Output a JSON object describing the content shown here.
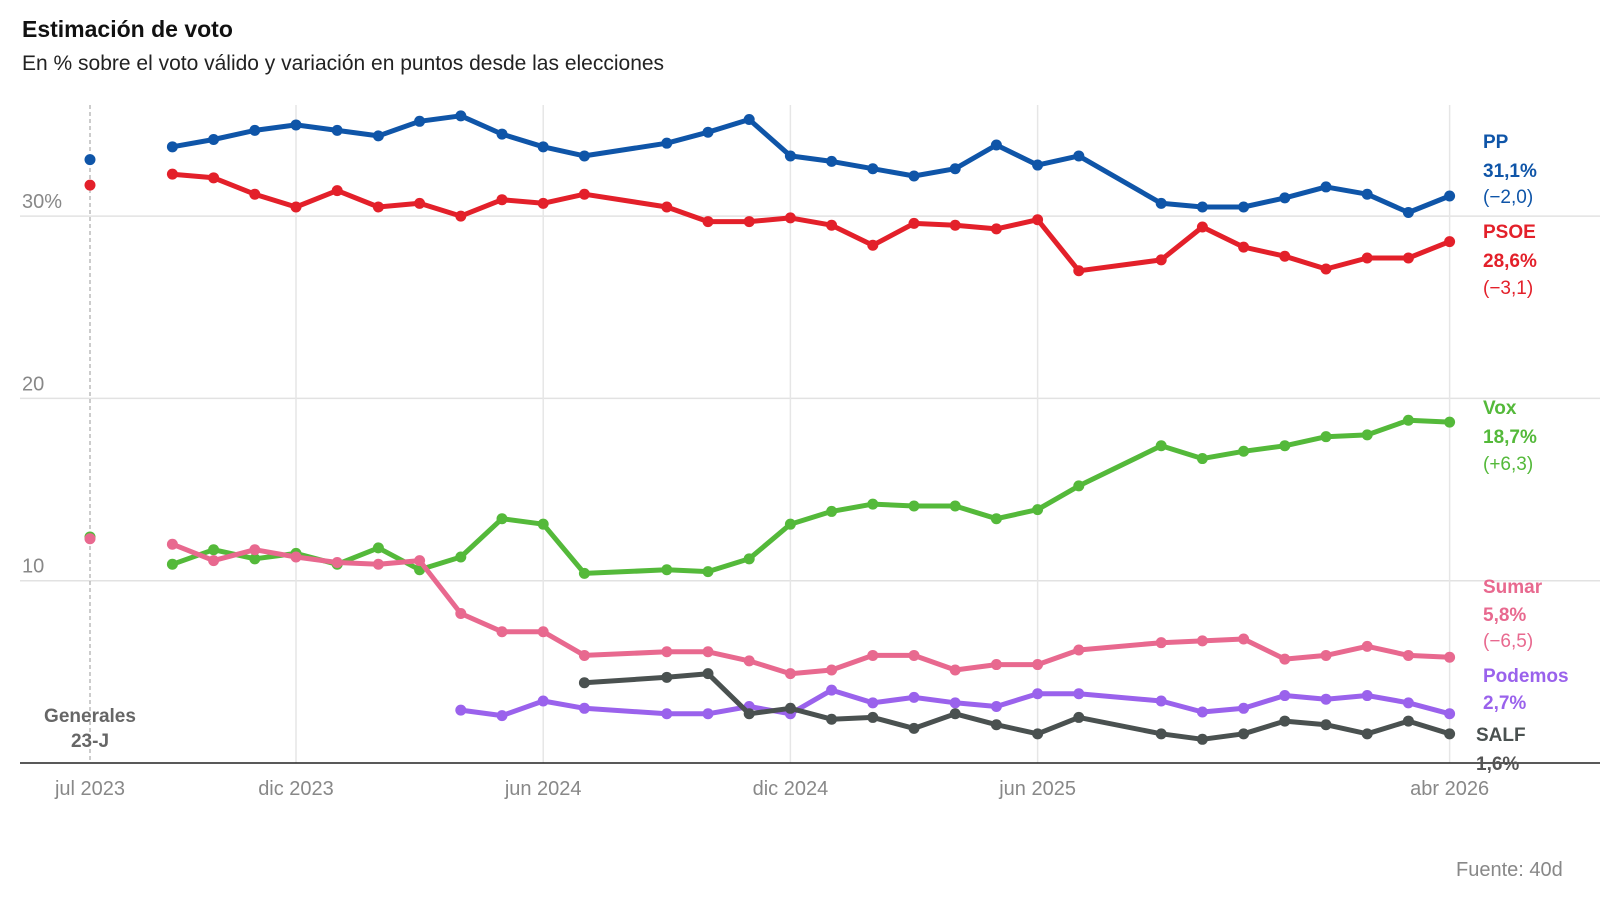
{
  "title": "Estimación de voto",
  "subtitle": "En % sobre el voto válido y variación en puntos desde las elecciones",
  "source": "Fuente: 40d",
  "chart_data": {
    "type": "line",
    "title": "Estimación de voto",
    "subtitle": "En % sobre el voto válido y variación en puntos desde las elecciones",
    "ylim": [
      0,
      35
    ],
    "y_ticks": [
      {
        "value": 10,
        "label": "10"
      },
      {
        "value": 20,
        "label": "20"
      },
      {
        "value": 30,
        "label": "30%"
      }
    ],
    "x_ticks": [
      {
        "value": "2023-07",
        "label": "jul 2023"
      },
      {
        "value": "2023-12",
        "label": "dic 2023"
      },
      {
        "value": "2024-06",
        "label": "jun 2024"
      },
      {
        "value": "2024-12",
        "label": "dic 2024"
      },
      {
        "value": "2025-06",
        "label": "jun 2025"
      },
      {
        "value": "2026-04",
        "label": "abr 2026"
      }
    ],
    "grid": true,
    "election": {
      "date": "2023-07",
      "label_line1": "Generales",
      "label_line2": "23-J"
    },
    "x": [
      "2023-09",
      "2023-10",
      "2023-11",
      "2023-12",
      "2024-01",
      "2024-02",
      "2024-03",
      "2024-04",
      "2024-05",
      "2024-06",
      "2024-07",
      "2024-09",
      "2024-10",
      "2024-11",
      "2024-12",
      "2025-01",
      "2025-02",
      "2025-03",
      "2025-04",
      "2025-05",
      "2025-06",
      "2025-07",
      "2025-09",
      "2025-10",
      "2025-11",
      "2025-12",
      "2026-01",
      "2026-02",
      "2026-03",
      "2026-04"
    ],
    "series": [
      {
        "name": "PP",
        "color": "#0f55a8",
        "election_value": 33.1,
        "last_label": "31,1%",
        "change_label": "(−2,0)",
        "values": [
          33.8,
          34.2,
          34.7,
          35.0,
          34.7,
          34.4,
          35.2,
          35.5,
          34.5,
          33.8,
          33.3,
          34.0,
          34.6,
          35.3,
          33.3,
          33.0,
          32.6,
          32.2,
          32.6,
          33.9,
          32.8,
          33.3,
          30.7,
          30.5,
          30.5,
          31.0,
          31.6,
          31.2,
          30.2,
          31.1
        ]
      },
      {
        "name": "PSOE",
        "color": "#e3202a",
        "election_value": 31.7,
        "last_label": "28,6%",
        "change_label": "(−3,1)",
        "values": [
          32.3,
          32.1,
          31.2,
          30.5,
          31.4,
          30.5,
          30.7,
          30.0,
          30.9,
          30.7,
          31.2,
          30.5,
          29.7,
          29.7,
          29.9,
          29.5,
          28.4,
          29.6,
          29.5,
          29.3,
          29.8,
          27.0,
          27.6,
          29.4,
          28.3,
          27.8,
          27.1,
          27.7,
          27.7,
          28.6
        ]
      },
      {
        "name": "Vox",
        "color": "#54b93a",
        "election_value": 12.4,
        "last_label": "18,7%",
        "change_label": "(+6,3)",
        "values": [
          10.9,
          11.7,
          11.2,
          11.5,
          10.9,
          11.8,
          10.6,
          11.3,
          13.4,
          13.1,
          10.4,
          10.6,
          10.5,
          11.2,
          13.1,
          13.8,
          14.2,
          14.1,
          14.1,
          13.4,
          13.9,
          15.2,
          17.4,
          16.7,
          17.1,
          17.4,
          17.9,
          18.0,
          18.8,
          18.7
        ]
      },
      {
        "name": "Sumar",
        "color": "#e8698f",
        "election_value": 12.3,
        "last_label": "5,8%",
        "change_label": "(−6,5)",
        "values": [
          12.0,
          11.1,
          11.7,
          11.3,
          11.0,
          10.9,
          11.1,
          8.2,
          7.2,
          7.2,
          5.9,
          6.1,
          6.1,
          5.6,
          4.9,
          5.1,
          5.9,
          5.9,
          5.1,
          5.4,
          5.4,
          6.2,
          6.6,
          6.7,
          6.8,
          5.7,
          5.9,
          6.4,
          5.9,
          5.8
        ]
      },
      {
        "name": "Podemos",
        "color": "#9a62ec",
        "election_value": null,
        "last_label": "2,7%",
        "change_label": "",
        "values": [
          null,
          null,
          null,
          null,
          null,
          null,
          null,
          2.9,
          2.6,
          3.4,
          3.0,
          2.7,
          2.7,
          3.1,
          2.7,
          4.0,
          3.3,
          3.6,
          3.3,
          3.1,
          3.8,
          3.8,
          3.4,
          2.8,
          3.0,
          3.7,
          3.5,
          3.7,
          3.3,
          2.7
        ]
      },
      {
        "name": "SALF",
        "color": "#4a5150",
        "election_value": null,
        "last_label": "1,6%",
        "change_label": "",
        "values": [
          null,
          null,
          null,
          null,
          null,
          null,
          null,
          null,
          null,
          null,
          4.4,
          4.7,
          4.9,
          2.7,
          3.0,
          2.4,
          2.5,
          1.9,
          2.7,
          2.1,
          1.6,
          2.5,
          1.6,
          1.3,
          1.6,
          2.3,
          2.1,
          1.6,
          2.3,
          1.6
        ]
      }
    ]
  }
}
